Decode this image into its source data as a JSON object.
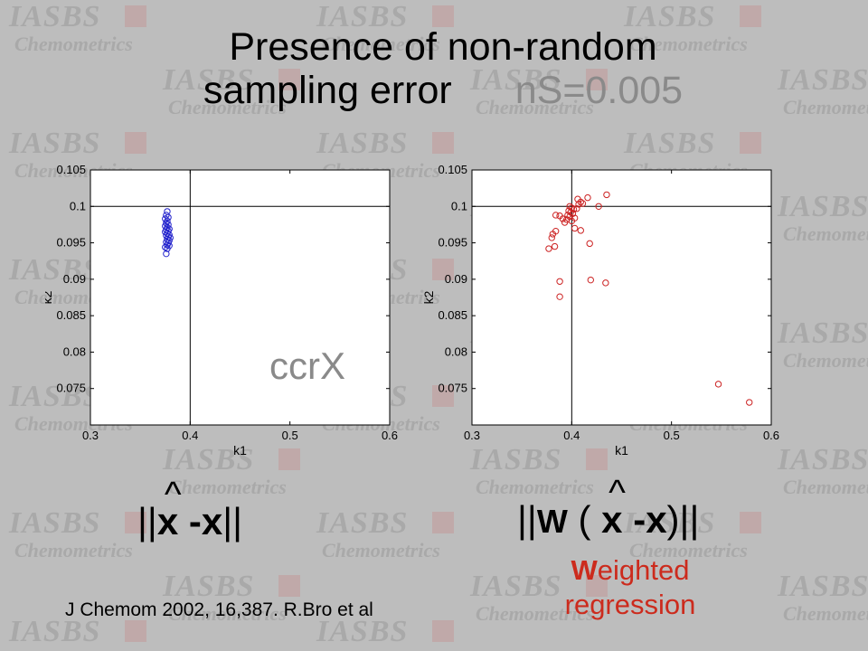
{
  "slide": {
    "title_line1": "Presence of non-random",
    "title_line2": "sampling error",
    "title_ns": "nS=0.005",
    "ccrx_label": "ccrX",
    "citation": "J Chemom 2002, 16,387. R.Bro et al",
    "weighted_first": "W",
    "weighted_rest": "eighted",
    "weighted_line2": "regression",
    "formula_left": {
      "bars_open": "||",
      "xhat": "x",
      "minus": "-",
      "x": "x",
      "bars_close": "||"
    },
    "formula_right": {
      "bars_open": "||",
      "w": "W",
      "paren_open": "(",
      "xhat": "x",
      "minus": "-",
      "x": "x",
      "paren_close": ")",
      "bars_close": "||"
    },
    "watermark": {
      "top": "IASBS",
      "bottom": "Chemometrics"
    }
  },
  "chart_data": [
    {
      "type": "scatter",
      "xlabel": "k1",
      "ylabel": "k2",
      "xlim": [
        0.3,
        0.6
      ],
      "ylim": [
        0.07,
        0.105
      ],
      "xticks": [
        0.3,
        0.4,
        0.5,
        0.6
      ],
      "yticks": [
        0.075,
        0.08,
        0.085,
        0.09,
        0.095,
        0.1,
        0.105
      ],
      "reference_lines": {
        "x": 0.4,
        "y": 0.1
      },
      "grid": false,
      "color": "#2323cc",
      "series": [
        {
          "points": [
            [
              0.377,
              0.0993
            ],
            [
              0.376,
              0.0988
            ],
            [
              0.378,
              0.0985
            ],
            [
              0.375,
              0.0983
            ],
            [
              0.377,
              0.098
            ],
            [
              0.376,
              0.0977
            ],
            [
              0.378,
              0.0975
            ],
            [
              0.375,
              0.0973
            ],
            [
              0.377,
              0.0971
            ],
            [
              0.379,
              0.0969
            ],
            [
              0.376,
              0.0968
            ],
            [
              0.378,
              0.0966
            ],
            [
              0.375,
              0.0965
            ],
            [
              0.377,
              0.0963
            ],
            [
              0.379,
              0.0961
            ],
            [
              0.376,
              0.096
            ],
            [
              0.378,
              0.0958
            ],
            [
              0.38,
              0.0957
            ],
            [
              0.377,
              0.0955
            ],
            [
              0.379,
              0.0953
            ],
            [
              0.376,
              0.0951
            ],
            [
              0.378,
              0.095
            ],
            [
              0.377,
              0.0947
            ],
            [
              0.379,
              0.0946
            ],
            [
              0.375,
              0.0944
            ],
            [
              0.377,
              0.0942
            ],
            [
              0.376,
              0.0935
            ]
          ]
        }
      ]
    },
    {
      "type": "scatter",
      "xlabel": "k1",
      "ylabel": "k2",
      "xlim": [
        0.3,
        0.6
      ],
      "ylim": [
        0.07,
        0.105
      ],
      "xticks": [
        0.3,
        0.4,
        0.5,
        0.6
      ],
      "yticks": [
        0.075,
        0.08,
        0.085,
        0.09,
        0.095,
        0.1,
        0.105
      ],
      "reference_lines": {
        "x": 0.4,
        "y": 0.1
      },
      "grid": false,
      "color": "#cc2222",
      "series": [
        {
          "points": [
            [
              0.398,
              0.1
            ],
            [
              0.4,
              0.0998
            ],
            [
              0.402,
              0.0996
            ],
            [
              0.397,
              0.0994
            ],
            [
              0.399,
              0.0992
            ],
            [
              0.401,
              0.099
            ],
            [
              0.396,
              0.0988
            ],
            [
              0.398,
              0.0986
            ],
            [
              0.403,
              0.0984
            ],
            [
              0.395,
              0.0982
            ],
            [
              0.4,
              0.098
            ],
            [
              0.405,
              0.0997
            ],
            [
              0.407,
              0.1003
            ],
            [
              0.409,
              0.1006
            ],
            [
              0.411,
              0.1004
            ],
            [
              0.406,
              0.101
            ],
            [
              0.416,
              0.1012
            ],
            [
              0.427,
              0.1
            ],
            [
              0.435,
              0.1016
            ],
            [
              0.388,
              0.0987
            ],
            [
              0.384,
              0.0988
            ],
            [
              0.391,
              0.0983
            ],
            [
              0.393,
              0.0978
            ],
            [
              0.403,
              0.097
            ],
            [
              0.409,
              0.0967
            ],
            [
              0.384,
              0.0966
            ],
            [
              0.381,
              0.0962
            ],
            [
              0.38,
              0.0957
            ],
            [
              0.383,
              0.0945
            ],
            [
              0.377,
              0.0942
            ],
            [
              0.418,
              0.0949
            ],
            [
              0.388,
              0.0897
            ],
            [
              0.419,
              0.0899
            ],
            [
              0.434,
              0.0895
            ],
            [
              0.388,
              0.0876
            ],
            [
              0.547,
              0.0756
            ],
            [
              0.578,
              0.0731
            ]
          ]
        }
      ]
    }
  ]
}
